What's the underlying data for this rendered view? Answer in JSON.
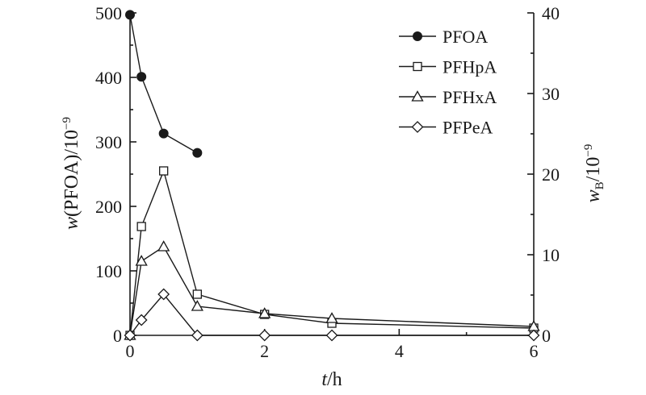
{
  "chart_data": {
    "type": "line",
    "xlabel_italic": "t",
    "xlabel_unit": "/h",
    "ylabel_left_italic": "w",
    "ylabel_left_rest": "(PFOA)/10",
    "ylabel_left_exp": "−9",
    "ylabel_right_italic": "w",
    "ylabel_right_sub": "B",
    "ylabel_right_rest": "/10",
    "ylabel_right_exp": "−9",
    "xlim": [
      0,
      6
    ],
    "ylim_left": [
      0,
      500
    ],
    "ylim_right": [
      0,
      40
    ],
    "x_ticks": [
      "0",
      "2",
      "4",
      "6"
    ],
    "y_left_ticks": [
      "0",
      "100",
      "200",
      "300",
      "400",
      "500"
    ],
    "y_right_ticks": [
      "0",
      "10",
      "20",
      "30",
      "40"
    ],
    "legend_position": "top-right",
    "series": [
      {
        "name": "PFOA",
        "axis": "left",
        "marker": "filled-circle",
        "x": [
          0,
          0.17,
          0.5,
          1
        ],
        "y": [
          497,
          401,
          313,
          283
        ]
      },
      {
        "name": "PFHpA",
        "axis": "right",
        "marker": "open-square",
        "x": [
          0,
          0.17,
          0.5,
          1,
          2,
          3,
          6
        ],
        "y": [
          0,
          13.5,
          20.4,
          5.1,
          2.6,
          1.5,
          0.9
        ]
      },
      {
        "name": "PFHxA",
        "axis": "right",
        "marker": "open-triangle",
        "x": [
          0,
          0.17,
          0.5,
          1,
          2,
          3,
          6
        ],
        "y": [
          0,
          9.2,
          11.0,
          3.6,
          2.7,
          2.1,
          1.1
        ]
      },
      {
        "name": "PFPeA",
        "axis": "right",
        "marker": "open-diamond",
        "x": [
          0,
          0.17,
          0.5,
          1,
          2,
          3,
          6
        ],
        "y": [
          0,
          1.9,
          5.1,
          0,
          0,
          0,
          0
        ]
      }
    ]
  }
}
